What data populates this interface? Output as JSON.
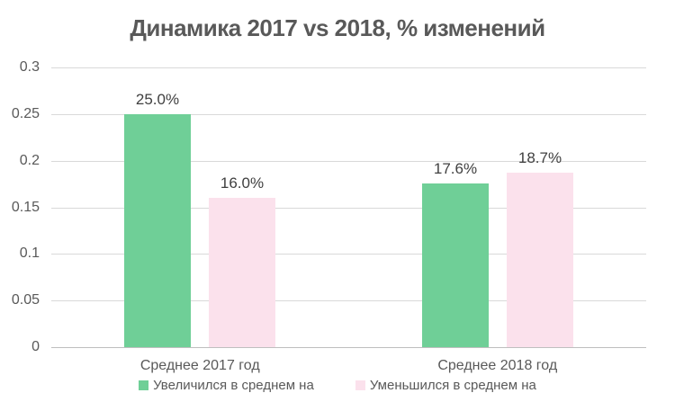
{
  "chart_data": {
    "type": "bar",
    "title": "Динамика 2017 vs 2018, % изменений",
    "categories": [
      "Среднее 2017 год",
      "Среднее 2018 год"
    ],
    "series": [
      {
        "name": "Увеличился в среднем на",
        "color": "#6FCF97",
        "values": [
          0.25,
          0.176
        ],
        "data_labels": [
          "25.0%",
          "17.6%"
        ]
      },
      {
        "name": "Уменьшился в среднем на",
        "color": "#FBE1EC",
        "values": [
          0.16,
          0.187
        ],
        "data_labels": [
          "16.0%",
          "18.7%"
        ]
      }
    ],
    "y_axis": {
      "min": 0,
      "max": 0.3,
      "step": 0.05,
      "tick_labels": [
        "0.3",
        "0.25",
        "0.2",
        "0.15",
        "0.1",
        "0.05",
        "0"
      ]
    },
    "xlabel": "",
    "ylabel": "",
    "grid": true,
    "legend_position": "bottom",
    "colors": {
      "title_text": "#595959",
      "axis_text": "#595959",
      "data_label_text": "#404040",
      "gridline": "#D9D9D9",
      "axis_line": "#BFBFBF",
      "background": "#FFFFFF"
    }
  }
}
